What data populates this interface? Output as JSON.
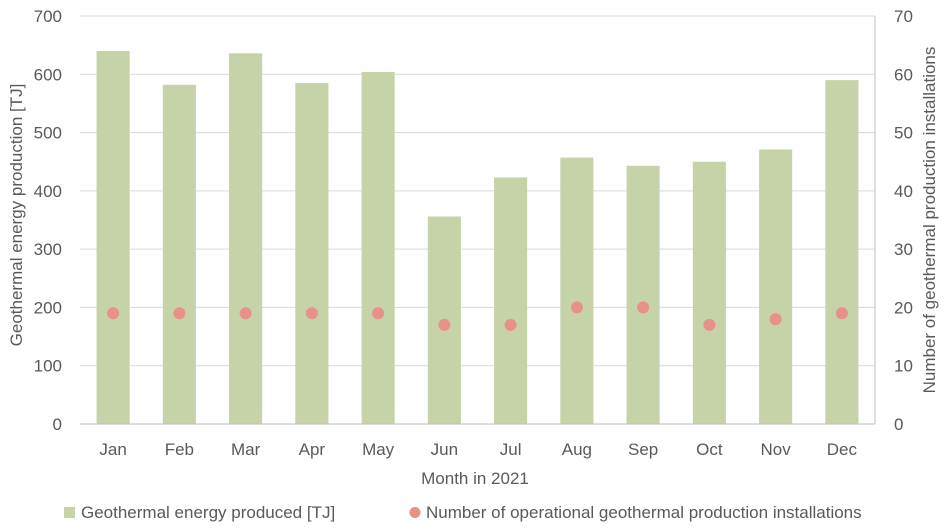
{
  "chart_data": {
    "type": "bar",
    "title": "",
    "xlabel": "Month in 2021",
    "ylabel": "Geothermal energy production [TJ]",
    "y2label": "Number of geothermal production installations",
    "categories": [
      "Jan",
      "Feb",
      "Mar",
      "Apr",
      "May",
      "Jun",
      "Jul",
      "Aug",
      "Sep",
      "Oct",
      "Nov",
      "Dec"
    ],
    "ylim": [
      0,
      700
    ],
    "y2lim": [
      0,
      70
    ],
    "yticks": [
      "0",
      "100",
      "200",
      "300",
      "400",
      "500",
      "600",
      "700"
    ],
    "y2ticks": [
      "0",
      "10",
      "20",
      "30",
      "40",
      "50",
      "60",
      "70"
    ],
    "grid": true,
    "legend_position": "bottom",
    "series": [
      {
        "name": "Geothermal energy produced [TJ]",
        "type": "bar",
        "axis": "left",
        "color": "#c6d3a9",
        "values": [
          640,
          582,
          636,
          585,
          604,
          356,
          423,
          457,
          443,
          450,
          471,
          590
        ]
      },
      {
        "name": "Number of operational geothermal production installations",
        "type": "scatter",
        "axis": "right",
        "color": "#e8908a",
        "values": [
          19,
          19,
          19,
          19,
          19,
          17,
          17,
          20,
          20,
          17,
          18,
          19
        ]
      }
    ]
  }
}
